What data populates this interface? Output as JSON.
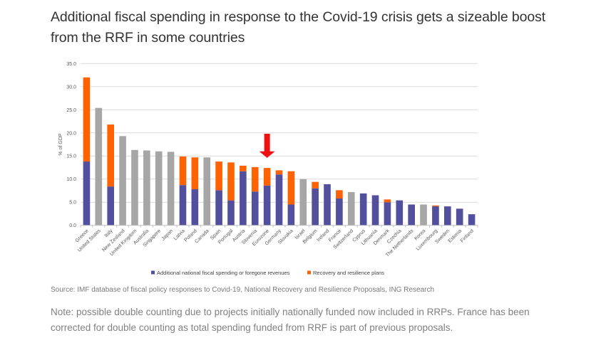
{
  "title": "Additional fiscal spending in response to the Covid-19 crisis gets a sizeable boost from the RRF in some countries",
  "source": "Source: IMF database of fiscal policy responses to Covid-19, National Recovery and Resilience Proposals, ING Research",
  "note": "Note: possible double counting due to projects initially nationally funded now included in RRPs. France has been corrected for double counting as total spending funded from RRF is part of previous proposals.",
  "colors": {
    "national": "#524f9c",
    "rrf": "#ff6200",
    "non_eu": "#a6a6a6",
    "grid": "#d9d9d9",
    "arrow": "#ee1111"
  },
  "chart_data": {
    "type": "bar",
    "stacked": true,
    "title": "",
    "xlabel": "",
    "ylabel": "% of GDP",
    "ylim": [
      0,
      35
    ],
    "yticks": [
      "0.0",
      "5.0",
      "10.0",
      "15.0",
      "20.0",
      "25.0",
      "30.0",
      "35.0"
    ],
    "grid": true,
    "legend_position": "bottom",
    "categories": [
      "Greece",
      "United States",
      "Italy",
      "New Zealand",
      "United Kingdom",
      "Australia",
      "Singapore",
      "Japan",
      "Latvia",
      "Poland",
      "Canada",
      "Spain",
      "Portugal",
      "Austria",
      "Slovenia",
      "Eurozone",
      "Germany",
      "Slovakia",
      "Israel",
      "Belgium",
      "Ireland",
      "France",
      "Switzerland",
      "Cyprus",
      "Lithuania",
      "Denmark",
      "Czechia",
      "The Netherlands",
      "Korea",
      "Luxembourg",
      "Sweden",
      "Estonia",
      "Finland"
    ],
    "non_eu": [
      false,
      true,
      false,
      true,
      true,
      true,
      true,
      true,
      false,
      false,
      true,
      false,
      false,
      false,
      false,
      false,
      false,
      false,
      true,
      false,
      false,
      false,
      true,
      false,
      false,
      false,
      false,
      false,
      true,
      false,
      false,
      false,
      false
    ],
    "series": [
      {
        "name": "Additional national fiscal spending or foregone revenues",
        "values": [
          13.8,
          25.4,
          8.4,
          19.3,
          16.3,
          16.2,
          16.0,
          15.9,
          8.7,
          7.8,
          14.7,
          7.6,
          5.4,
          11.7,
          7.3,
          8.6,
          11.0,
          4.5,
          10.0,
          8.0,
          8.9,
          5.8,
          7.2,
          6.9,
          6.5,
          5.0,
          5.4,
          4.5,
          4.5,
          4.1,
          4.1,
          3.6,
          2.4
        ]
      },
      {
        "name": "Recovery and resilience plans",
        "values": [
          18.2,
          0,
          13.4,
          0,
          0,
          0,
          0,
          0,
          6.2,
          6.9,
          0,
          6.2,
          8.2,
          1.2,
          5.3,
          3.8,
          0.9,
          7.2,
          0,
          1.4,
          0,
          1.8,
          0,
          0,
          0,
          0.6,
          0,
          0,
          0,
          0.2,
          0,
          0,
          0
        ]
      }
    ],
    "annotations": [
      {
        "type": "arrow",
        "target": "Eurozone",
        "direction": "down"
      }
    ]
  }
}
